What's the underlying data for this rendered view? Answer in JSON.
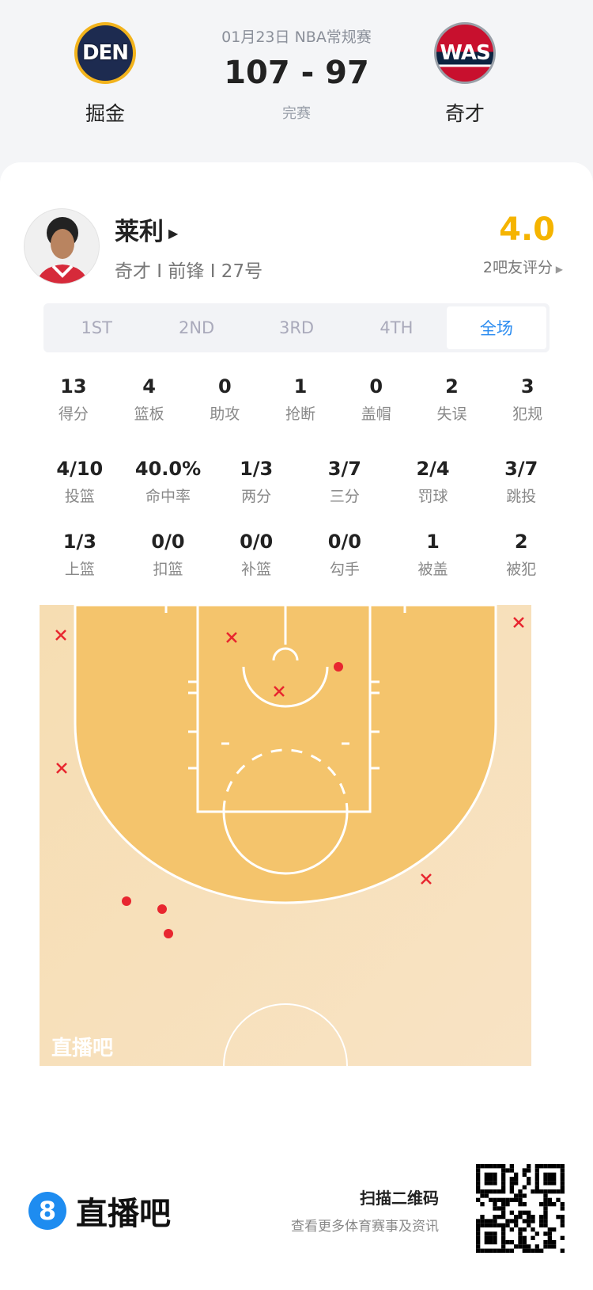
{
  "game": {
    "date_league": "01月23日 NBA常规赛",
    "score": "107 - 97",
    "status": "完赛",
    "home": {
      "name": "掘金",
      "abbr": "DEN"
    },
    "away": {
      "name": "奇才",
      "abbr": "WAS"
    }
  },
  "player": {
    "name": "莱利",
    "info": "奇才 I 前锋 I 27号",
    "rating": "4.0",
    "rating_label": "2吧友评分"
  },
  "tabs": [
    {
      "label": "1ST"
    },
    {
      "label": "2ND"
    },
    {
      "label": "3RD"
    },
    {
      "label": "4TH"
    },
    {
      "label": "全场",
      "active": true
    }
  ],
  "stats_rows": [
    [
      {
        "v": "13",
        "l": "得分"
      },
      {
        "v": "4",
        "l": "篮板"
      },
      {
        "v": "0",
        "l": "助攻"
      },
      {
        "v": "1",
        "l": "抢断"
      },
      {
        "v": "0",
        "l": "盖帽"
      },
      {
        "v": "2",
        "l": "失误"
      },
      {
        "v": "3",
        "l": "犯规"
      }
    ],
    [
      {
        "v": "4/10",
        "l": "投篮"
      },
      {
        "v": "40.0%",
        "l": "命中率"
      },
      {
        "v": "1/3",
        "l": "两分"
      },
      {
        "v": "3/7",
        "l": "三分"
      },
      {
        "v": "2/4",
        "l": "罚球"
      },
      {
        "v": "3/7",
        "l": "跳投"
      }
    ],
    [
      {
        "v": "1/3",
        "l": "上篮"
      },
      {
        "v": "0/0",
        "l": "扣篮"
      },
      {
        "v": "0/0",
        "l": "补篮"
      },
      {
        "v": "0/0",
        "l": "勾手"
      },
      {
        "v": "1",
        "l": "被盖"
      },
      {
        "v": "2",
        "l": "被犯"
      }
    ]
  ],
  "shot_chart": {
    "watermark": "直播吧",
    "made_color": "#e8262f",
    "miss_color": "#e8262f",
    "shots": [
      {
        "made": false
      },
      {
        "made": false
      },
      {
        "made": false
      },
      {
        "made": false
      },
      {
        "made": false
      },
      {
        "made": false
      },
      {
        "made": true
      },
      {
        "made": true
      },
      {
        "made": true
      },
      {
        "made": true
      }
    ]
  },
  "footer": {
    "brand_digit": "8",
    "brand": "直播吧",
    "scan_title": "扫描二维码",
    "scan_sub": "查看更多体育赛事及资讯"
  }
}
